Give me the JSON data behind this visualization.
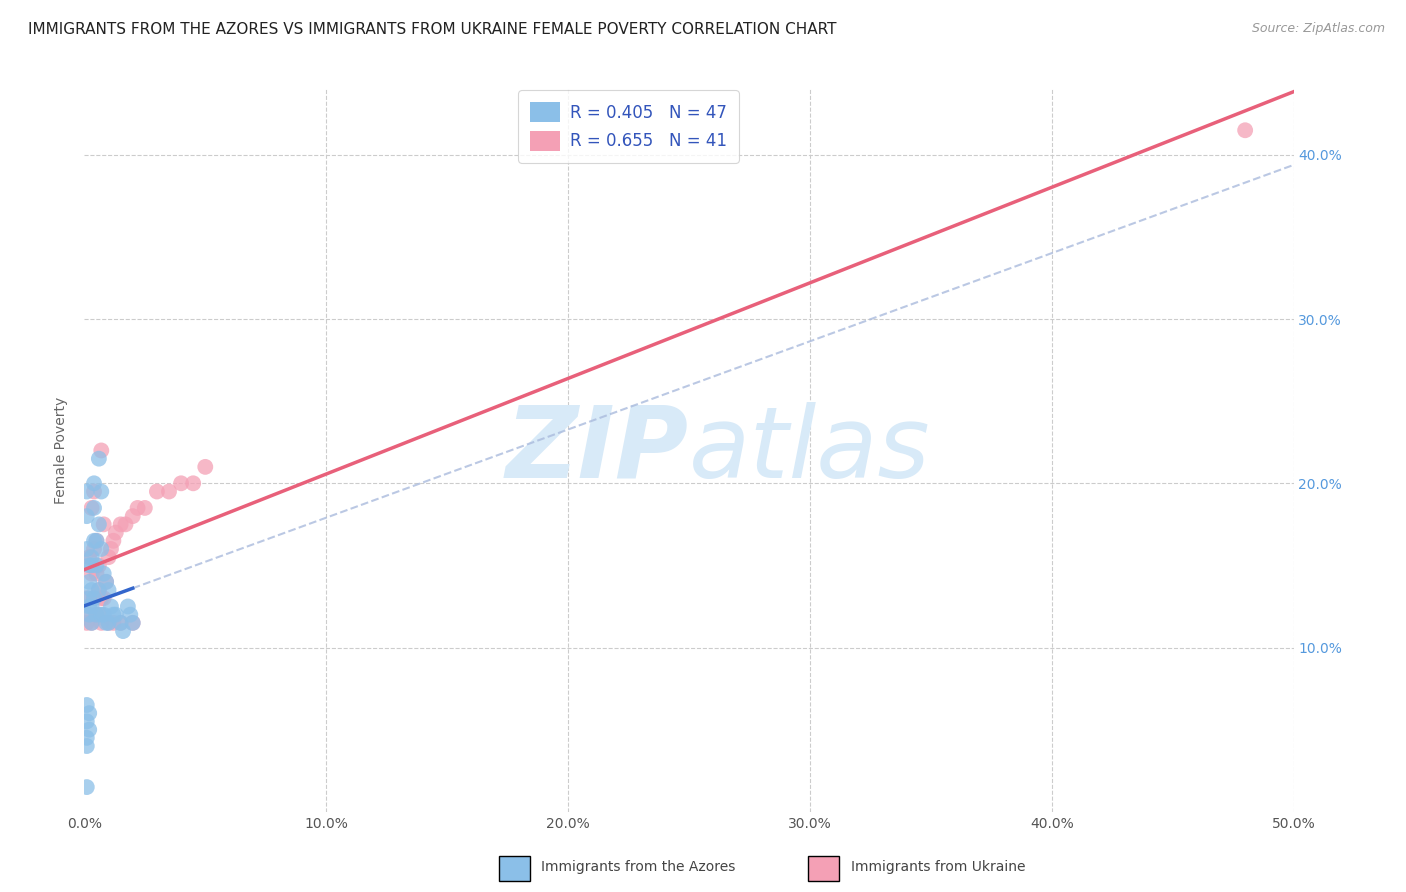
{
  "title": "IMMIGRANTS FROM THE AZORES VS IMMIGRANTS FROM UKRAINE FEMALE POVERTY CORRELATION CHART",
  "source": "Source: ZipAtlas.com",
  "ylabel": "Female Poverty",
  "xlim": [
    0,
    0.5
  ],
  "ylim": [
    0,
    0.44
  ],
  "color_azores": "#8BBFE8",
  "color_ukraine": "#F4A0B5",
  "line_color_azores": "#3366CC",
  "line_color_ukraine": "#E8607A",
  "line_color_dash": "#AABBDD",
  "legend_r_azores": "0.405",
  "legend_n_azores": "47",
  "legend_r_ukraine": "0.655",
  "legend_n_ukraine": "41",
  "label_azores": "Immigrants from the Azores",
  "label_ukraine": "Immigrants from Ukraine",
  "watermark_zip": "ZIP",
  "watermark_atlas": "atlas",
  "background_color": "#FFFFFF",
  "grid_color": "#CCCCCC",
  "azores_x": [
    0.001,
    0.001,
    0.001,
    0.002,
    0.002,
    0.002,
    0.002,
    0.002,
    0.003,
    0.003,
    0.003,
    0.003,
    0.003,
    0.004,
    0.004,
    0.004,
    0.004,
    0.005,
    0.005,
    0.005,
    0.006,
    0.006,
    0.006,
    0.007,
    0.007,
    0.007,
    0.008,
    0.008,
    0.009,
    0.009,
    0.01,
    0.01,
    0.011,
    0.012,
    0.013,
    0.015,
    0.016,
    0.018,
    0.019,
    0.02,
    0.001,
    0.001,
    0.002,
    0.002,
    0.001,
    0.001,
    0.001
  ],
  "azores_y": [
    0.195,
    0.18,
    0.16,
    0.15,
    0.14,
    0.13,
    0.125,
    0.12,
    0.155,
    0.15,
    0.135,
    0.125,
    0.115,
    0.2,
    0.185,
    0.165,
    0.13,
    0.165,
    0.15,
    0.12,
    0.215,
    0.175,
    0.135,
    0.195,
    0.16,
    0.12,
    0.145,
    0.12,
    0.14,
    0.115,
    0.135,
    0.115,
    0.125,
    0.12,
    0.12,
    0.115,
    0.11,
    0.125,
    0.12,
    0.115,
    0.065,
    0.055,
    0.06,
    0.05,
    0.045,
    0.04,
    0.015
  ],
  "ukraine_x": [
    0.001,
    0.001,
    0.002,
    0.002,
    0.003,
    0.003,
    0.004,
    0.004,
    0.005,
    0.005,
    0.006,
    0.006,
    0.007,
    0.007,
    0.008,
    0.009,
    0.01,
    0.011,
    0.012,
    0.013,
    0.015,
    0.017,
    0.02,
    0.022,
    0.025,
    0.03,
    0.035,
    0.04,
    0.045,
    0.05,
    0.003,
    0.004,
    0.005,
    0.006,
    0.007,
    0.008,
    0.01,
    0.012,
    0.015,
    0.02,
    0.48
  ],
  "ukraine_y": [
    0.13,
    0.115,
    0.155,
    0.12,
    0.185,
    0.115,
    0.195,
    0.13,
    0.165,
    0.12,
    0.15,
    0.12,
    0.22,
    0.13,
    0.175,
    0.14,
    0.155,
    0.16,
    0.165,
    0.17,
    0.175,
    0.175,
    0.18,
    0.185,
    0.185,
    0.195,
    0.195,
    0.2,
    0.2,
    0.21,
    0.145,
    0.16,
    0.145,
    0.135,
    0.115,
    0.13,
    0.115,
    0.115,
    0.115,
    0.115,
    0.415
  ],
  "title_fontsize": 11,
  "axis_label_fontsize": 10,
  "tick_fontsize": 10,
  "legend_fontsize": 12,
  "source_fontsize": 9
}
